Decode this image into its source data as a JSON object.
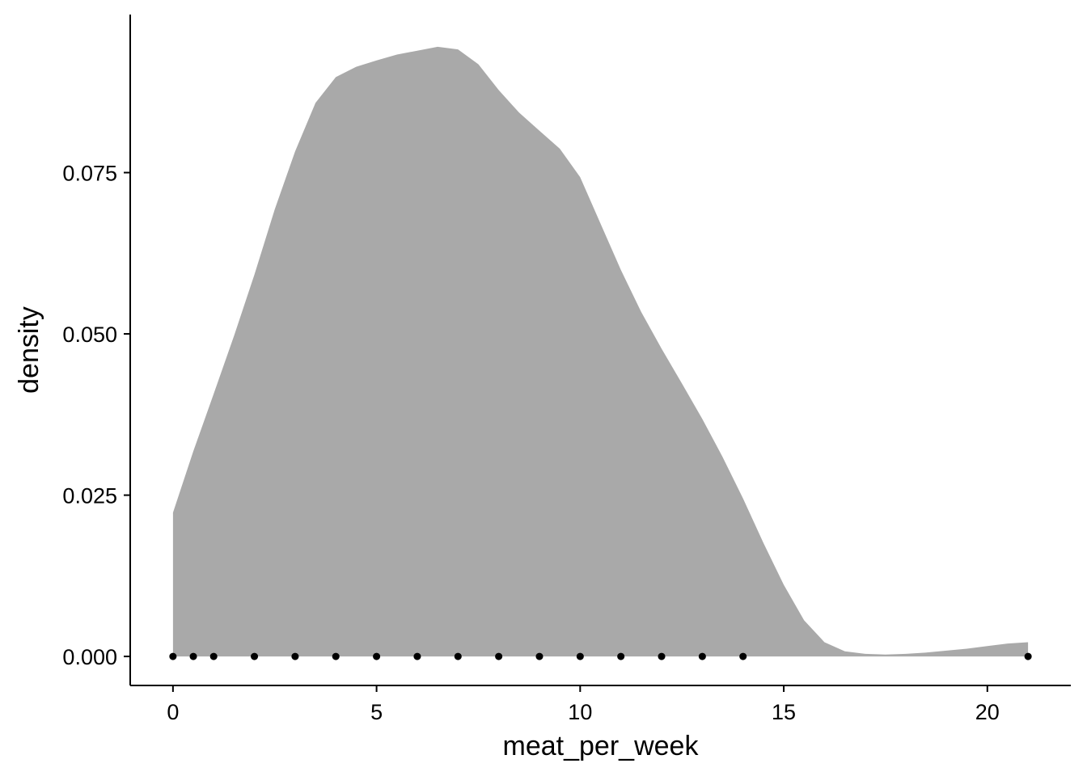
{
  "chart_data": {
    "type": "area",
    "title": "",
    "xlabel": "meat_per_week",
    "ylabel": "density",
    "xlim": [
      -1.05,
      22.05
    ],
    "ylim": [
      -0.0045,
      0.0995
    ],
    "x_ticks": [
      0,
      5,
      10,
      15,
      20
    ],
    "x_tick_labels": [
      "0",
      "5",
      "10",
      "15",
      "20"
    ],
    "y_ticks": [
      0,
      0.025,
      0.05,
      0.075
    ],
    "y_tick_labels": [
      "0.000",
      "0.025",
      "0.050",
      "0.075"
    ],
    "grid": false,
    "legend": "none",
    "fill_color": "#a9a9a9",
    "point_color": "#000000",
    "density": {
      "x": [
        0,
        0.5,
        1,
        1.5,
        2,
        2.5,
        3,
        3.5,
        4,
        4.5,
        5,
        5.5,
        6,
        6.5,
        7,
        7.5,
        8,
        8.5,
        9,
        9.5,
        10,
        10.5,
        11,
        11.5,
        12,
        12.5,
        13,
        13.5,
        14,
        14.5,
        15,
        15.5,
        16,
        16.5,
        17,
        17.5,
        18,
        18.5,
        19,
        19.5,
        20,
        20.5,
        21
      ],
      "y": [
        0.0223,
        0.0318,
        0.0407,
        0.0497,
        0.0592,
        0.0693,
        0.0783,
        0.0858,
        0.0898,
        0.0914,
        0.0924,
        0.0933,
        0.0939,
        0.0945,
        0.0941,
        0.0918,
        0.0878,
        0.0843,
        0.0815,
        0.0787,
        0.0743,
        0.0671,
        0.0599,
        0.0534,
        0.0477,
        0.0423,
        0.0368,
        0.0309,
        0.0245,
        0.0176,
        0.0111,
        0.0056,
        0.0022,
        0.0008,
        0.0004,
        0.0003,
        0.0004,
        0.0006,
        0.0009,
        0.0012,
        0.0016,
        0.002,
        0.0022
      ]
    },
    "points": {
      "x": [
        0,
        0.5,
        1,
        2,
        3,
        4,
        5,
        6,
        7,
        8,
        9,
        10,
        11,
        12,
        13,
        14,
        21
      ],
      "y": [
        0,
        0,
        0,
        0,
        0,
        0,
        0,
        0,
        0,
        0,
        0,
        0,
        0,
        0,
        0,
        0,
        0
      ]
    }
  }
}
